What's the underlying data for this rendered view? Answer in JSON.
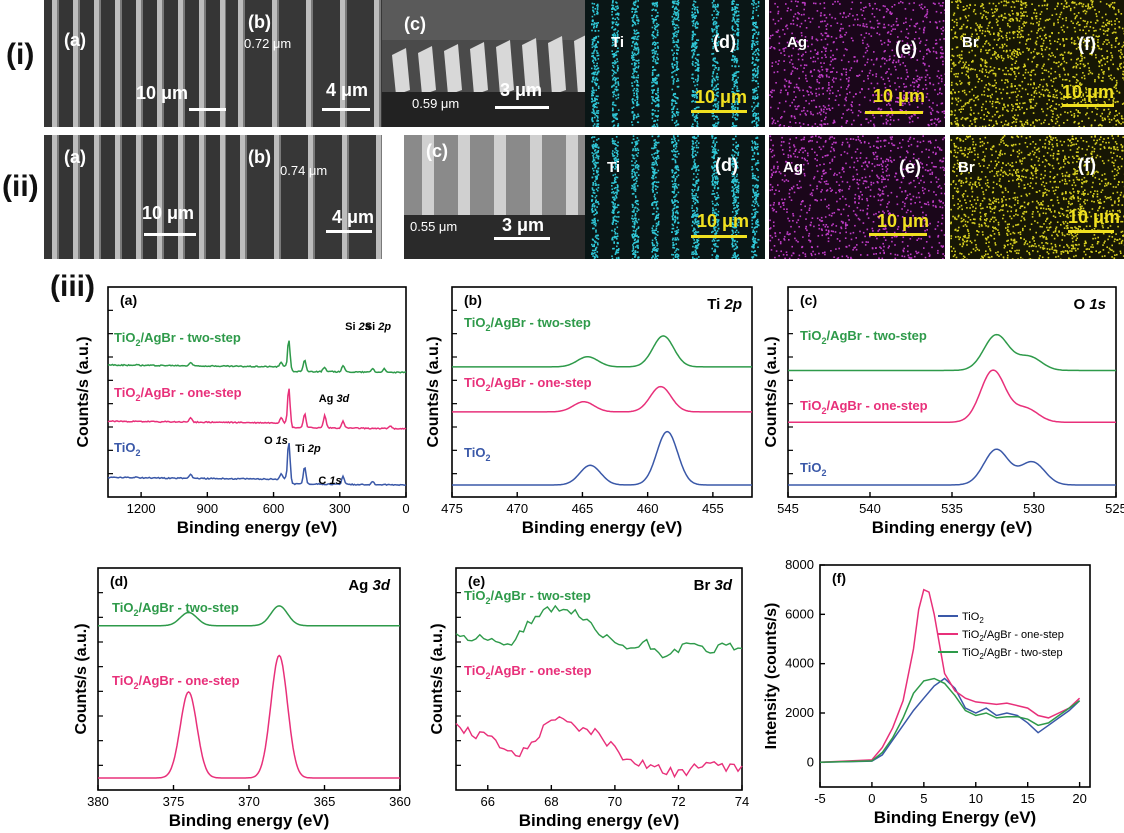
{
  "rows": {
    "i": "(i)",
    "ii": "(ii)",
    "iii": "(iii)"
  },
  "micrographs": {
    "row_i": [
      {
        "panel": "(a)",
        "scale": "10 μm"
      },
      {
        "panel": "(b)",
        "scale": "4 μm",
        "width": "0.72 μm"
      },
      {
        "panel": "(c)",
        "scale": "3 μm",
        "height": "0.59 μm"
      },
      {
        "panel": "(d)",
        "element": "Ti",
        "scale": "10 μm"
      },
      {
        "panel": "(e)",
        "element": "Ag",
        "scale": "10 μm"
      },
      {
        "panel": "(f)",
        "element": "Br",
        "scale": "10 μm"
      }
    ],
    "row_ii": [
      {
        "panel": "(a)",
        "scale": "10 μm"
      },
      {
        "panel": "(b)",
        "scale": "4 μm",
        "width": "0.74 μm"
      },
      {
        "panel": "(c)",
        "scale": "3 μm",
        "height": "0.55 μm"
      },
      {
        "panel": "(d)",
        "element": "Ti",
        "scale": "10 μm"
      },
      {
        "panel": "(e)",
        "element": "Ag",
        "scale": "10 μm"
      },
      {
        "panel": "(f)",
        "element": "Br",
        "scale": "10 μm"
      }
    ],
    "map_colors": {
      "Ti": "#30c8d8",
      "Ag": "#c03cc8",
      "Br": "#d8d020"
    }
  },
  "colors": {
    "blue": "#3a58a8",
    "pink": "#e8307a",
    "green": "#2e9a4a"
  },
  "chart_data": [
    {
      "id": "a",
      "type": "line",
      "panel": "(a)",
      "title": "",
      "xlabel": "Binding energy (eV)",
      "ylabel": "Counts/s (a.u.)",
      "xlim": [
        1350,
        0
      ],
      "x_ticks": [
        1200,
        900,
        600,
        300,
        0
      ],
      "series": [
        {
          "name": "TiO2/AgBr - two-step",
          "color": "#2e9a4a",
          "offset": 2.0,
          "peaks": [
            [
              1220,
              0.02
            ],
            [
              976,
              0.06
            ],
            [
              565,
              0.08
            ],
            [
              531,
              0.55
            ],
            [
              459,
              0.2
            ],
            [
              370,
              0.08
            ],
            [
              285,
              0.12
            ],
            [
              151,
              0.07
            ],
            [
              100,
              0.06
            ]
          ]
        },
        {
          "name": "TiO2/AgBr - one-step",
          "color": "#e8307a",
          "offset": 1.0,
          "peaks": [
            [
              976,
              0.08
            ],
            [
              565,
              0.1
            ],
            [
              531,
              0.7
            ],
            [
              459,
              0.25
            ],
            [
              368,
              0.22
            ],
            [
              285,
              0.12
            ],
            [
              70,
              0.05
            ]
          ]
        },
        {
          "name": "TiO2",
          "color": "#3a58a8",
          "offset": 0.0,
          "peaks": [
            [
              1220,
              0.02
            ],
            [
              976,
              0.08
            ],
            [
              565,
              0.1
            ],
            [
              531,
              0.75
            ],
            [
              459,
              0.3
            ],
            [
              285,
              0.14
            ],
            [
              151,
              0.05
            ]
          ]
        }
      ],
      "annotations": [
        {
          "text": "Si 2s",
          "x": 151
        },
        {
          "text": "Si 2p",
          "x": 100
        },
        {
          "text": "Ag 3d",
          "x": 368
        },
        {
          "text": "O 1s",
          "x": 531
        },
        {
          "text": "Ti 2p",
          "x": 459
        },
        {
          "text": "C 1s",
          "x": 285
        }
      ]
    },
    {
      "id": "b",
      "type": "line",
      "panel": "(b)",
      "title": "Ti 2p",
      "xlabel": "Binding energy (eV)",
      "ylabel": "Counts/s (a.u.)",
      "xlim": [
        475,
        452
      ],
      "x_ticks": [
        475,
        470,
        465,
        460,
        455
      ],
      "series": [
        {
          "name": "TiO2/AgBr - two-step",
          "color": "#2e9a4a",
          "offset": 2.1,
          "peaks": [
            [
              464.6,
              0.18
            ],
            [
              458.8,
              0.55
            ]
          ]
        },
        {
          "name": "TiO2/AgBr - one-step",
          "color": "#e8307a",
          "offset": 1.3,
          "peaks": [
            [
              464.9,
              0.18
            ],
            [
              459.0,
              0.45
            ]
          ]
        },
        {
          "name": "TiO2",
          "color": "#3a58a8",
          "offset": 0.0,
          "peaks": [
            [
              464.4,
              0.35
            ],
            [
              458.5,
              0.95
            ]
          ]
        }
      ]
    },
    {
      "id": "c",
      "type": "line",
      "panel": "(c)",
      "title": "O 1s",
      "xlabel": "Binding energy (eV)",
      "ylabel": "Counts/s (a.u.)",
      "xlim": [
        545,
        525
      ],
      "x_ticks": [
        545,
        540,
        535,
        530,
        525
      ],
      "series": [
        {
          "name": "TiO2/AgBr - two-step",
          "color": "#2e9a4a",
          "offset": 2.1,
          "peaks": [
            [
              532.3,
              0.65
            ],
            [
              530.3,
              0.25
            ]
          ]
        },
        {
          "name": "TiO2/AgBr - one-step",
          "color": "#e8307a",
          "offset": 1.15,
          "peaks": [
            [
              532.5,
              0.95
            ],
            [
              530.5,
              0.25
            ]
          ]
        },
        {
          "name": "TiO2",
          "color": "#3a58a8",
          "offset": 0.0,
          "peaks": [
            [
              532.3,
              0.65
            ],
            [
              530.1,
              0.42
            ]
          ]
        }
      ]
    },
    {
      "id": "d",
      "type": "line",
      "panel": "(d)",
      "title": "Ag 3d",
      "xlabel": "Binding energy (eV)",
      "ylabel": "Counts/s (a.u.)",
      "xlim": [
        380,
        360
      ],
      "x_ticks": [
        380,
        375,
        370,
        365,
        360
      ],
      "series": [
        {
          "name": "TiO2/AgBr - two-step",
          "color": "#2e9a4a",
          "offset": 2.3,
          "peaks": [
            [
              374.0,
              0.2
            ],
            [
              368.0,
              0.3
            ]
          ]
        },
        {
          "name": "TiO2/AgBr - one-step",
          "color": "#e8307a",
          "offset": 0.0,
          "peaks": [
            [
              374.0,
              1.3
            ],
            [
              368.0,
              1.85
            ]
          ]
        }
      ]
    },
    {
      "id": "e",
      "type": "line",
      "panel": "(e)",
      "title": "Br 3d",
      "xlabel": "Binding energy (eV)",
      "ylabel": "Counts/s (a.u.)",
      "xlim": [
        65,
        74
      ],
      "x_ticks": [
        66,
        68,
        70,
        72,
        74
      ],
      "series": [
        {
          "name": "TiO2/AgBr - two-step",
          "color": "#2e9a4a",
          "offset": 1.4,
          "x": [
            65.0,
            65.5,
            66.0,
            66.5,
            67.0,
            67.5,
            68.0,
            68.5,
            69.0,
            69.5,
            70.0,
            70.5,
            71.0,
            71.5,
            72.0,
            72.5,
            73.0,
            73.5,
            74.0
          ],
          "y": [
            0.45,
            0.35,
            0.38,
            0.22,
            0.42,
            0.6,
            0.72,
            0.7,
            0.6,
            0.38,
            0.3,
            0.22,
            0.28,
            0.15,
            0.22,
            0.25,
            0.2,
            0.25,
            0.22
          ]
        },
        {
          "name": "TiO2/AgBr - one-step",
          "color": "#e8307a",
          "offset": 0.0,
          "x": [
            65.0,
            65.5,
            66.0,
            66.5,
            67.0,
            67.5,
            68.0,
            68.5,
            69.0,
            69.5,
            70.0,
            70.5,
            71.0,
            71.5,
            72.0,
            72.5,
            73.0,
            73.5,
            74.0
          ],
          "y": [
            0.65,
            0.55,
            0.5,
            0.35,
            0.3,
            0.5,
            0.78,
            0.7,
            0.62,
            0.55,
            0.35,
            0.22,
            0.18,
            0.12,
            0.05,
            0.12,
            0.18,
            0.12,
            0.15
          ]
        }
      ]
    },
    {
      "id": "f",
      "type": "line",
      "panel": "(f)",
      "title": "",
      "xlabel": "Binding Energy (eV)",
      "ylabel": "Intensity (counts/s)",
      "xlim": [
        -5,
        21
      ],
      "ylim": [
        -1000,
        8000
      ],
      "x_ticks": [
        -5,
        0,
        5,
        10,
        15,
        20
      ],
      "y_ticks": [
        0,
        2000,
        4000,
        6000,
        8000
      ],
      "legend": "top-right",
      "series": [
        {
          "name": "TiO2",
          "color": "#3a58a8",
          "x": [
            -5,
            0,
            1,
            2,
            3,
            4,
            5,
            6,
            7,
            8,
            9,
            10,
            11,
            12,
            13,
            14,
            15,
            16,
            17,
            18,
            19,
            20
          ],
          "y": [
            0,
            50,
            300,
            900,
            1500,
            2100,
            2600,
            3100,
            3400,
            3000,
            2200,
            2000,
            2200,
            1900,
            2000,
            1900,
            1600,
            1200,
            1500,
            1800,
            2100,
            2500
          ]
        },
        {
          "name": "TiO2/AgBr - one-step",
          "color": "#e8307a",
          "x": [
            -5,
            0,
            1,
            2,
            3,
            4,
            4.5,
            5,
            5.5,
            6,
            7,
            8,
            9,
            10,
            11,
            12,
            13,
            14,
            15,
            16,
            17,
            18,
            19,
            20
          ],
          "y": [
            0,
            100,
            600,
            1400,
            2500,
            4600,
            6200,
            7000,
            6900,
            6000,
            3600,
            2900,
            2600,
            2450,
            2400,
            2350,
            2400,
            2300,
            2200,
            1900,
            1800,
            2000,
            2200,
            2600
          ]
        },
        {
          "name": "TiO2/AgBr - two-step",
          "color": "#2e9a4a",
          "x": [
            -5,
            0,
            1,
            2,
            3,
            4,
            5,
            6,
            7,
            8,
            9,
            10,
            11,
            12,
            13,
            14,
            15,
            16,
            17,
            18,
            19,
            20
          ],
          "y": [
            0,
            60,
            400,
            1000,
            1800,
            2800,
            3300,
            3400,
            3200,
            2700,
            2100,
            1900,
            2000,
            1800,
            1850,
            1850,
            1750,
            1500,
            1600,
            1900,
            2200,
            2500
          ]
        }
      ]
    }
  ]
}
